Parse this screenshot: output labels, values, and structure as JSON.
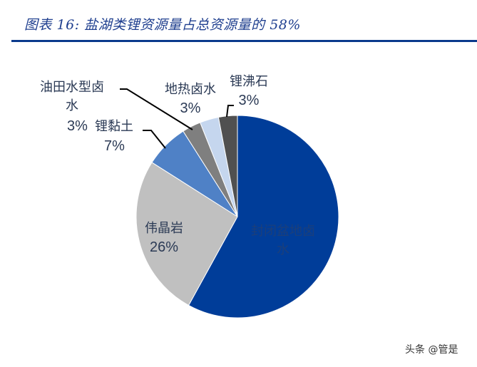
{
  "title": "图表 16:  盐湖类锂资源量占总资源量的 58%",
  "chart_data": {
    "type": "pie",
    "title": "图表 16: 盐湖类锂资源量占总资源量的 58%",
    "start_angle": "12 o'clock, clockwise",
    "slices": [
      {
        "label": "封闭盆地卤水",
        "value": 58,
        "color": "#003d99"
      },
      {
        "label": "伟晶岩",
        "value": 26,
        "color": "#c0c0c0"
      },
      {
        "label": "锂黏土",
        "value": 7,
        "color": "#4f81c6"
      },
      {
        "label": "油田水型卤水",
        "value": 3,
        "color": "#7f7f7f"
      },
      {
        "label": "地热卤水",
        "value": 3,
        "color": "#c5d6ee"
      },
      {
        "label": "锂沸石",
        "value": 3,
        "color": "#505050"
      }
    ]
  },
  "labels": {
    "closed_basin": {
      "name": "封闭盆地卤",
      "name2": "水"
    },
    "pegmatite": {
      "name": "伟晶岩",
      "pct": "26%"
    },
    "clay": {
      "name": "锂黏土",
      "pct": "7%"
    },
    "oilfield": {
      "name": "油田水型卤",
      "name2": "水",
      "pct": "3%"
    },
    "geothermal": {
      "name": "地热卤水",
      "pct": "3%"
    },
    "zeolite": {
      "name": "锂沸石",
      "pct": "3%"
    }
  },
  "watermark": "头条 @管是"
}
